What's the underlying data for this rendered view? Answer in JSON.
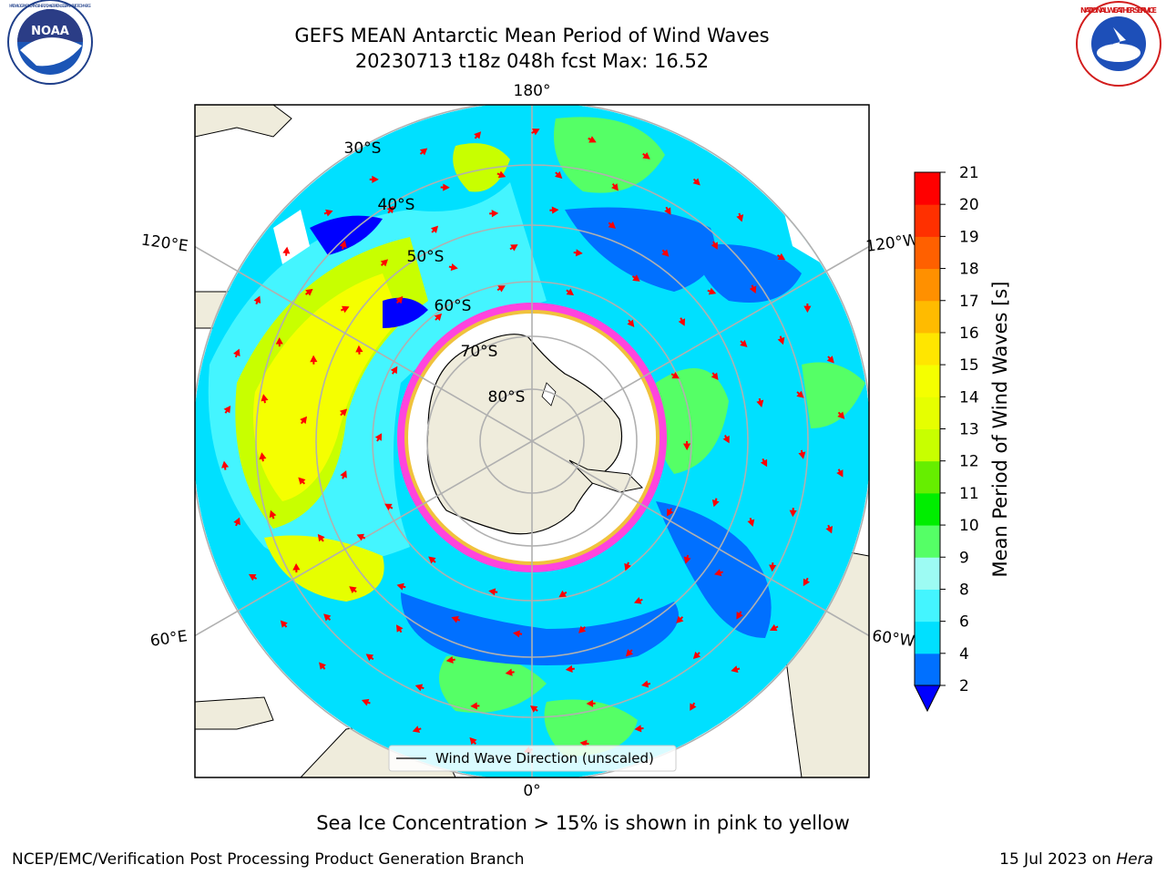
{
  "header": {
    "title_line1": "GEFS MEAN Antarctic Mean Period of Wind Waves",
    "title_line2": "20230713 t18z 048h fcst   Max: 16.52"
  },
  "logos": {
    "left": "noara-logo",
    "left_text": "NOAA",
    "left_ring_text": "NATIONAL OCEANIC AND ATMOSPHERIC ADMINISTRATION · U.S. DEPARTMENT OF COMMERCE",
    "right": "nws-logo",
    "right_ring_text": "NATIONAL WEATHER SERVICE"
  },
  "map": {
    "projection": "south-polar-stereographic",
    "longitude_labels": {
      "top": "180°",
      "bottom": "0°",
      "upper_left": "120°E",
      "upper_right": "120°W",
      "lower_left": "60°E",
      "lower_right": "60°W"
    },
    "latitude_labels": [
      "30°S",
      "40°S",
      "50°S",
      "60°S",
      "70°S",
      "80°S"
    ],
    "legend_label": "Wind Wave Direction (unscaled)",
    "colors": {
      "land": "#efecdc",
      "coast": "#000000",
      "grid": "#b0b0b0",
      "arrow": "#ff0000",
      "ice_edge": "#ff44dd",
      "ice_inner": "#f0c23c"
    }
  },
  "colorbar": {
    "label": "Mean Period of Wind Waves [s]",
    "ticks": [
      "2",
      "4",
      "6",
      "8",
      "9",
      "10",
      "11",
      "12",
      "13",
      "14",
      "15",
      "16",
      "17",
      "18",
      "19",
      "20",
      "21"
    ],
    "bands": [
      "#0070ff",
      "#00e0ff",
      "#44f5ff",
      "#9dfbf3",
      "#55ff66",
      "#00ee00",
      "#66ee00",
      "#c8ff00",
      "#e6ff00",
      "#f5ff00",
      "#ffe600",
      "#ffbb00",
      "#ff9000",
      "#ff6000",
      "#ff3000",
      "#ff0000"
    ],
    "under_color": "#0000ff"
  },
  "bottom_note": "Sea Ice Concentration > 15% is shown in pink to yellow",
  "footer": {
    "left": "NCEP/EMC/Verification Post Processing Product Generation Branch",
    "right_prefix": "15 Jul 2023 on",
    "right_host": "Hera"
  }
}
